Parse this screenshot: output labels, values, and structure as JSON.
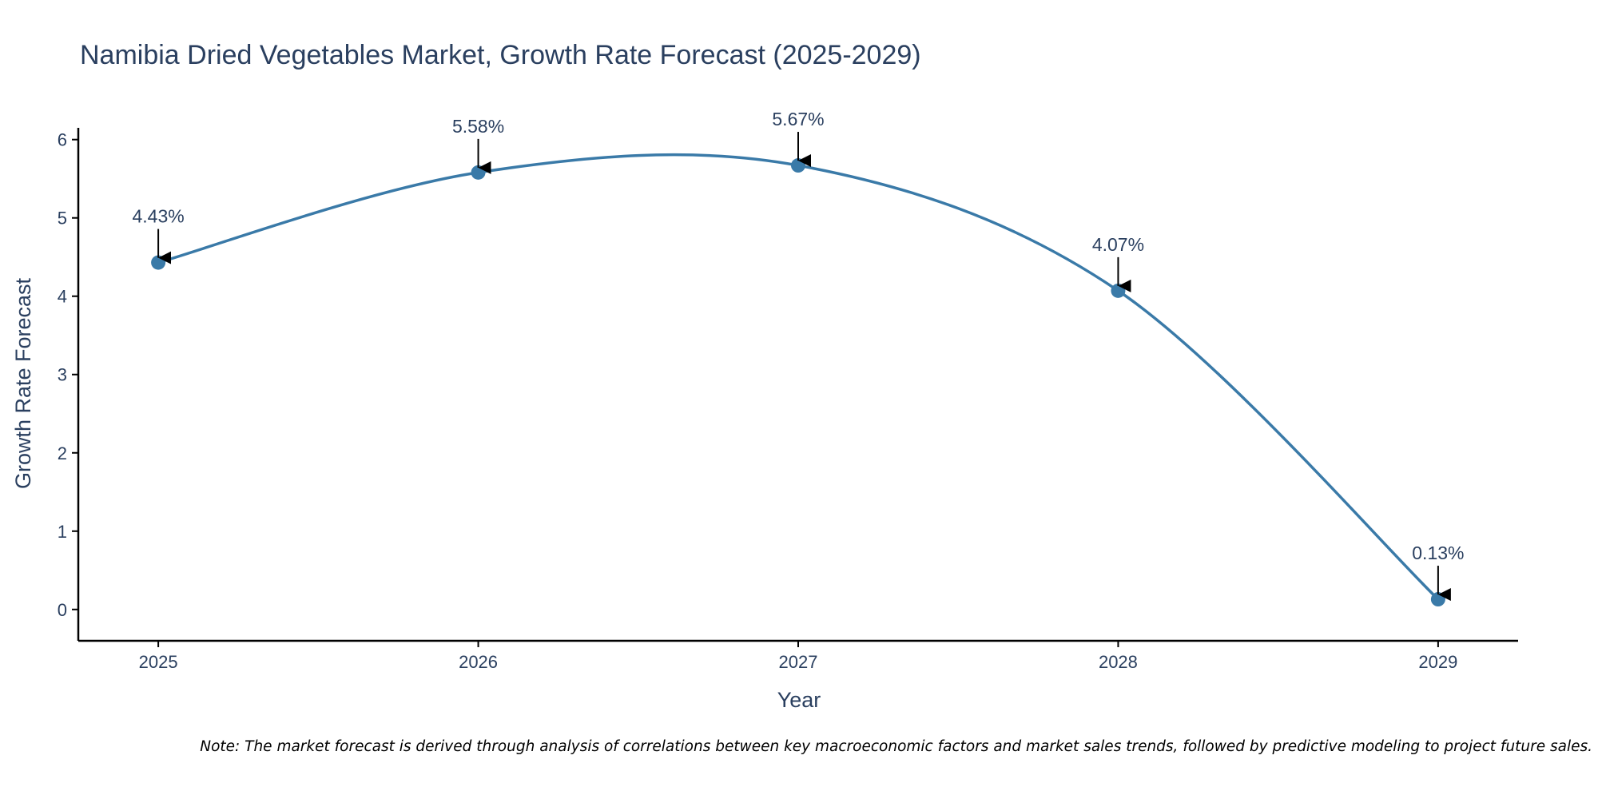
{
  "chart_data": {
    "type": "line",
    "title": "Namibia Dried Vegetables Market, Growth Rate Forecast (2025-2029)",
    "xlabel": "Year",
    "ylabel": "Growth Rate Forecast",
    "categories": [
      "2025",
      "2026",
      "2027",
      "2028",
      "2029"
    ],
    "x": [
      2025,
      2026,
      2027,
      2028,
      2029
    ],
    "series": [
      {
        "name": "Growth Rate Forecast",
        "values": [
          4.43,
          5.58,
          5.67,
          4.07,
          0.13
        ],
        "labels": [
          "4.43%",
          "5.58%",
          "5.67%",
          "4.07%",
          "0.13%"
        ]
      }
    ],
    "xlim": [
      2024.75,
      2029.25
    ],
    "ylim": [
      -0.4,
      6.15
    ],
    "yticks": [
      0,
      1,
      2,
      3,
      4,
      5,
      6
    ],
    "grid": false,
    "legend": "none",
    "line_shape": "spline",
    "colors": {
      "line": "#3a7aa8",
      "marker": "#3a7aa8",
      "arrow": "#000000",
      "axis": "#000000",
      "text": "#2a3f5f"
    }
  },
  "note": "Note: The market forecast is derived through analysis of correlations between key macroeconomic factors and market sales trends, followed by predictive modeling to project future sales."
}
